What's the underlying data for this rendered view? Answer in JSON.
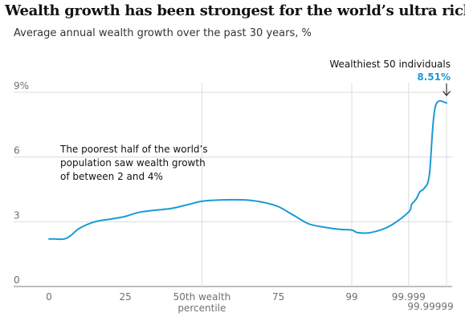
{
  "header": {
    "title": "Wealth growth has been strongest for the world’s ultra rich",
    "subtitle": "Average annual wealth growth over the past 30 years, %"
  },
  "colors": {
    "line": "#1b9ad6",
    "text": "#121212",
    "grid": "#dcdcdc",
    "axis_text": "#707070",
    "highlight": "#1b9ad6"
  },
  "chart_data": {
    "type": "line",
    "title": "Wealth growth has been strongest for the world’s ultra rich",
    "subtitle": "Average annual wealth growth over the past 30 years, %",
    "xlabel": "",
    "ylabel": "",
    "ylim": [
      0,
      9
    ],
    "grid": true,
    "y_ticks": [
      {
        "value": 9,
        "label": "9%"
      },
      {
        "value": 6,
        "label": "6"
      },
      {
        "value": 3,
        "label": "3"
      },
      {
        "value": 0,
        "label": "0"
      }
    ],
    "x_ticks": [
      {
        "pos": 0,
        "label": "0",
        "line": false
      },
      {
        "pos": 25,
        "label": "25",
        "line": false
      },
      {
        "pos": 50,
        "label": "50th wealth",
        "label2": "percentile",
        "line": true
      },
      {
        "pos": 75,
        "label": "75",
        "line": false
      },
      {
        "pos": 99,
        "label": "99",
        "line": true
      },
      {
        "pos": 99.999,
        "label": "99.999",
        "line": true
      },
      {
        "pos": 99.99999,
        "label": "99.99999",
        "line": true
      }
    ],
    "xlim": [
      0,
      99.99999
    ],
    "series": [
      {
        "values": [
          {
            "x": 0,
            "y": 2.2
          },
          {
            "x": 2,
            "y": 2.2
          },
          {
            "x": 5,
            "y": 2.2
          },
          {
            "x": 7,
            "y": 2.35
          },
          {
            "x": 10,
            "y": 2.7
          },
          {
            "x": 15,
            "y": 3.0
          },
          {
            "x": 20,
            "y": 3.12
          },
          {
            "x": 25,
            "y": 3.25
          },
          {
            "x": 30,
            "y": 3.45
          },
          {
            "x": 40,
            "y": 3.62
          },
          {
            "x": 45,
            "y": 3.78
          },
          {
            "x": 50,
            "y": 3.95
          },
          {
            "x": 55,
            "y": 4.0
          },
          {
            "x": 60,
            "y": 4.02
          },
          {
            "x": 65,
            "y": 4.0
          },
          {
            "x": 70,
            "y": 3.9
          },
          {
            "x": 75,
            "y": 3.7
          },
          {
            "x": 80,
            "y": 3.3
          },
          {
            "x": 85,
            "y": 2.9
          },
          {
            "x": 90,
            "y": 2.75
          },
          {
            "x": 95,
            "y": 2.65
          },
          {
            "x": 99,
            "y": 2.62
          },
          {
            "x": 99.5,
            "y": 2.5
          },
          {
            "x": 99.9,
            "y": 2.5
          },
          {
            "x": 99.99,
            "y": 2.8
          },
          {
            "x": 99.999,
            "y": 3.45
          },
          {
            "x": 99.9993,
            "y": 3.8
          },
          {
            "x": 99.9996,
            "y": 4.05
          },
          {
            "x": 99.99975,
            "y": 4.4
          },
          {
            "x": 99.99985,
            "y": 4.55
          },
          {
            "x": 99.99992,
            "y": 5.2
          },
          {
            "x": 99.99996,
            "y": 8.3
          },
          {
            "x": 99.99999,
            "y": 8.51
          }
        ]
      }
    ],
    "annotations": [
      {
        "name": "poorest-half-note",
        "lines": [
          "The poorest half of the world’s",
          "population saw wealth growth",
          "of between 2 and 4%"
        ]
      },
      {
        "name": "wealthiest-callout",
        "label": "Wealthiest 50 individuals",
        "value_label": "8.51%",
        "x": 99.99999,
        "y": 8.51
      }
    ]
  }
}
